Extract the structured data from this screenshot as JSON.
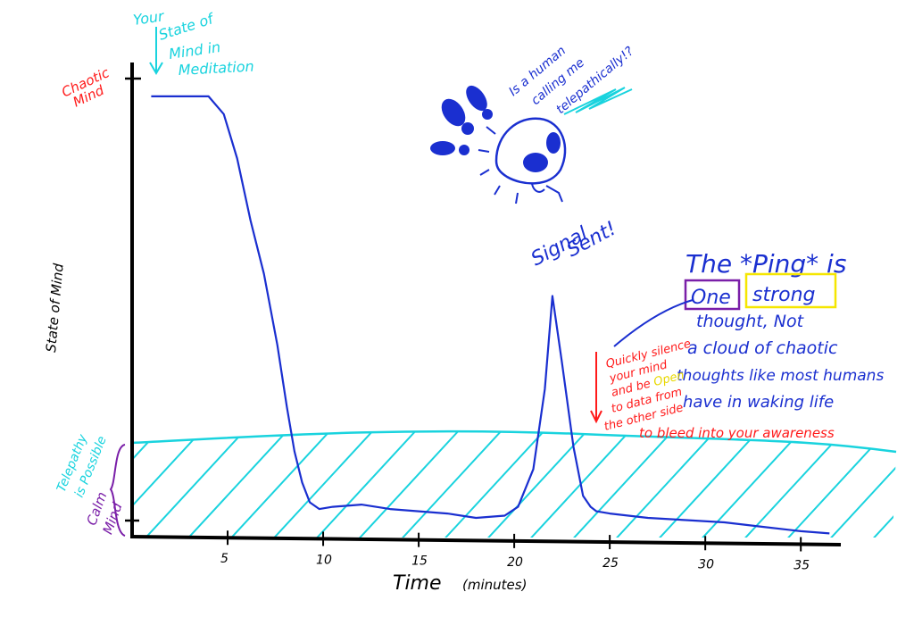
{
  "chart_data": {
    "type": "line",
    "title": "",
    "xlabel": "Time (minutes)",
    "ylabel": "State of Mind",
    "xlim": [
      0,
      37
    ],
    "ylim": [
      0,
      10
    ],
    "x_ticks": [
      5,
      10,
      15,
      20,
      25,
      30,
      35
    ],
    "y_top_label": "Chaotic Mind",
    "y_bottom_label": "Calm Mind",
    "series": [
      {
        "name": "",
        "color": "#1a2fd0",
        "x": [
          1,
          2,
          3,
          4,
          4.8,
          5.5,
          6.2,
          6.9,
          7.6,
          8.1,
          8.5,
          8.9,
          9.3,
          9.8,
          10.5,
          12,
          13.5,
          15,
          16.5,
          18,
          19.5,
          20.2,
          21,
          21.6,
          22,
          22.5,
          23.1,
          23.6,
          24,
          24.3,
          25,
          27,
          29,
          31,
          33,
          35,
          36.5
        ],
        "y": [
          9.6,
          9.6,
          9.6,
          9.6,
          9.2,
          8.2,
          6.8,
          5.6,
          4.0,
          2.6,
          1.6,
          0.9,
          0.45,
          0.3,
          0.35,
          0.4,
          0.3,
          0.25,
          0.2,
          0.1,
          0.15,
          0.35,
          1.2,
          3.0,
          5.1,
          3.6,
          1.7,
          0.6,
          0.35,
          0.25,
          0.2,
          0.1,
          0.05,
          0.0,
          -0.1,
          -0.2,
          -0.25
        ]
      }
    ],
    "telepathy_zone": {
      "y_min": -0.6,
      "y_max": 1.6,
      "color": "#19d3de",
      "label": "Telepathy is Possible"
    },
    "annotations": {
      "meditation": "Your State of Mind in Meditation",
      "signal": "Signal Sent!",
      "alien_thought_1": "Is a human",
      "alien_thought_2": "calling me",
      "alien_thought_3": "telepathically!?",
      "silence_1": "Quickly silence",
      "silence_2": "your mind",
      "silence_3a": "and be ",
      "silence_3b": "Open",
      "silence_4": "to data from",
      "silence_5": "the other side",
      "ping_1": "The *Ping* is",
      "ping_one": "One",
      "ping_strong": "strong",
      "ping_3": "thought, Not",
      "ping_4": "a cloud of chaotic",
      "ping_5": "thoughts like most humans",
      "ping_6": "have in waking life",
      "ping_7": "to bleed into your awareness"
    },
    "colors": {
      "axis": "#000000",
      "red": "#ff1a1a",
      "purple": "#7a1fa8",
      "yellow": "#f5e600",
      "blue": "#1a2fd0",
      "cyan": "#19d3de"
    }
  }
}
